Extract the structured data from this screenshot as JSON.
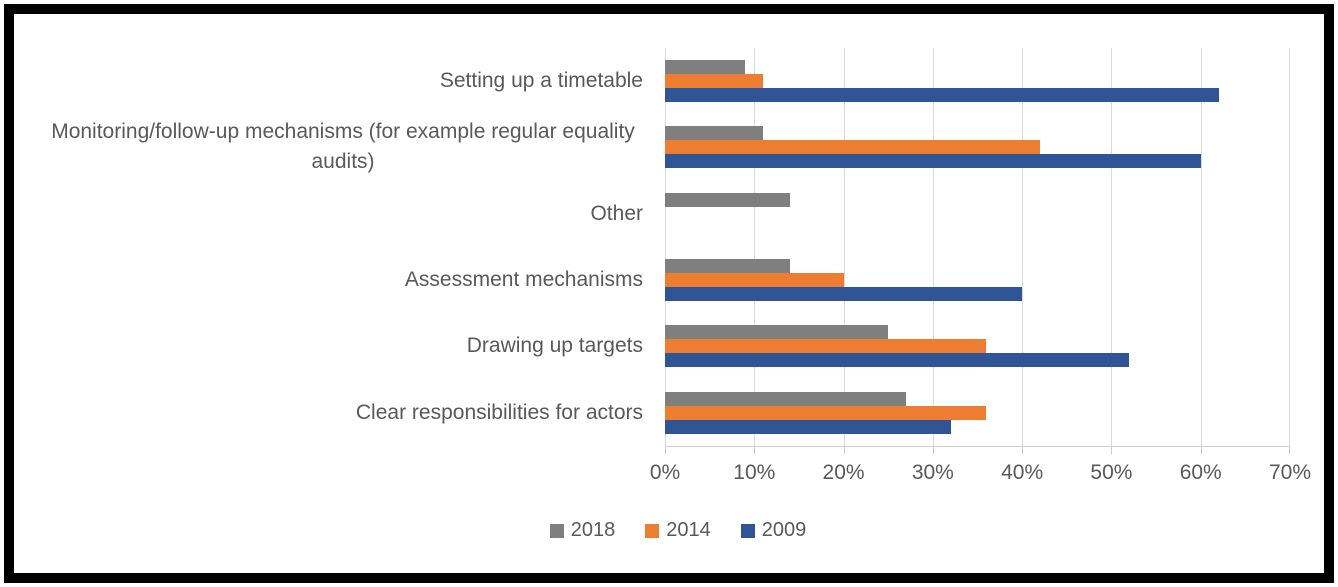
{
  "chart_data": {
    "type": "bar",
    "orientation": "horizontal",
    "title": "",
    "categories": [
      "Setting up a timetable",
      "Monitoring/follow-up mechanisms (for example regular equality audits)",
      "Other",
      "Assessment mechanisms",
      "Drawing up targets",
      "Clear responsibilities for actors"
    ],
    "series": [
      {
        "name": "2018",
        "color": "#7f7f7f",
        "values": [
          9,
          11,
          14,
          14,
          25,
          27
        ]
      },
      {
        "name": "2014",
        "color": "#ed7d31",
        "values": [
          11,
          42,
          0,
          20,
          36,
          36
        ]
      },
      {
        "name": "2009",
        "color": "#2f5597",
        "values": [
          62,
          60,
          0,
          40,
          52,
          32
        ]
      }
    ],
    "x_ticks": [
      "0%",
      "10%",
      "20%",
      "30%",
      "40%",
      "50%",
      "60%",
      "70%"
    ],
    "xlim": [
      0,
      70
    ],
    "xlabel": "",
    "ylabel": "",
    "grid": "vertical",
    "gridline_color": "#d9d9d9",
    "legend": [
      "2018",
      "2014",
      "2009"
    ],
    "legend_position": "bottom"
  }
}
